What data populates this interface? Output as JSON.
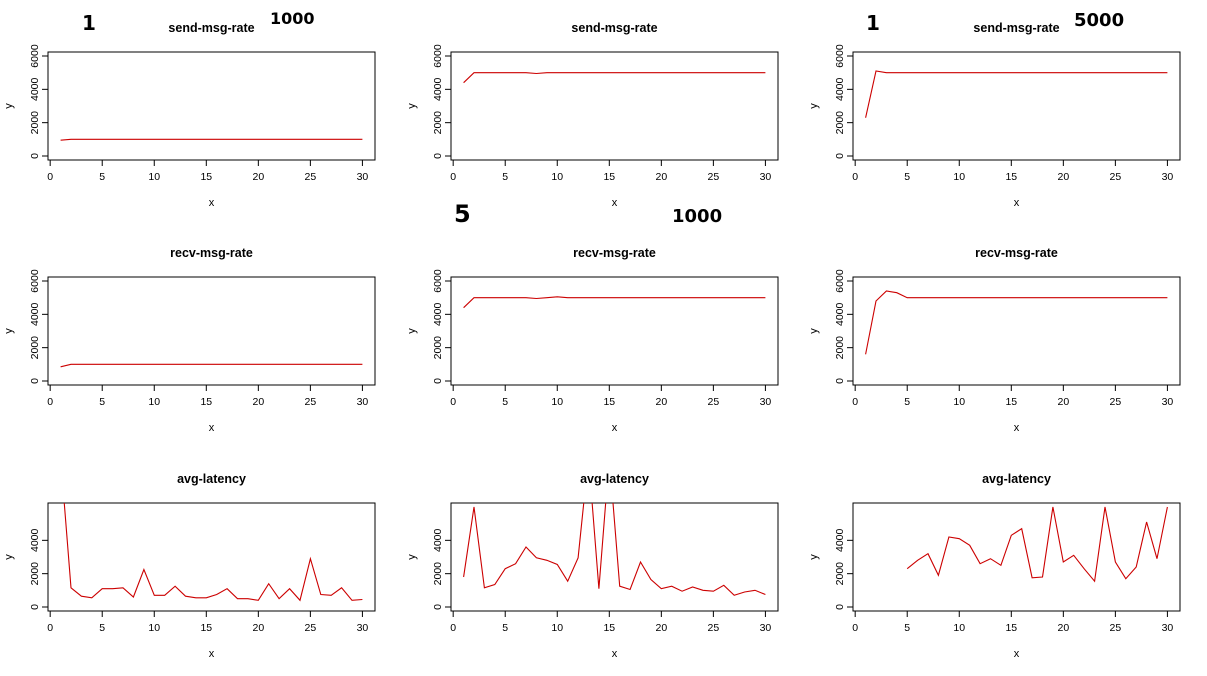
{
  "annotations": [
    {
      "id": "a1",
      "text": "1"
    },
    {
      "id": "a2",
      "text": "1000"
    },
    {
      "id": "a3",
      "text": "1"
    },
    {
      "id": "a4",
      "text": "5000"
    },
    {
      "id": "a5",
      "text": "5"
    },
    {
      "id": "a6",
      "text": "1000"
    }
  ],
  "chart_data": [
    {
      "type": "line",
      "title": "send-msg-rate",
      "xlabel": "x",
      "ylabel": "y",
      "xlim": [
        0,
        30
      ],
      "ylim": [
        0,
        6000
      ],
      "xticks": [
        "0",
        "5",
        "10",
        "15",
        "20",
        "25",
        "30"
      ],
      "yticks": [
        "0",
        "2000",
        "4000",
        "6000"
      ],
      "series": [
        {
          "color": "#cc0000",
          "x": [
            1,
            2,
            3,
            4,
            5,
            6,
            7,
            8,
            9,
            10,
            11,
            12,
            13,
            14,
            15,
            16,
            17,
            18,
            19,
            20,
            21,
            22,
            23,
            24,
            25,
            26,
            27,
            28,
            29,
            30
          ],
          "values": [
            950,
            1000,
            1000,
            1000,
            1000,
            1000,
            1000,
            1000,
            1000,
            1000,
            1000,
            1000,
            1000,
            1000,
            1000,
            1000,
            1000,
            1000,
            1000,
            1000,
            1000,
            1000,
            1000,
            1000,
            1000,
            1000,
            1000,
            1000,
            1000,
            1000
          ]
        }
      ]
    },
    {
      "type": "line",
      "title": "send-msg-rate",
      "xlabel": "x",
      "ylabel": "y",
      "xlim": [
        0,
        30
      ],
      "ylim": [
        0,
        6000
      ],
      "xticks": [
        "0",
        "5",
        "10",
        "15",
        "20",
        "25",
        "30"
      ],
      "yticks": [
        "0",
        "2000",
        "4000",
        "6000"
      ],
      "series": [
        {
          "color": "#cc0000",
          "x": [
            1,
            2,
            3,
            4,
            5,
            6,
            7,
            8,
            9,
            10,
            11,
            12,
            13,
            14,
            15,
            16,
            17,
            18,
            19,
            20,
            21,
            22,
            23,
            24,
            25,
            26,
            27,
            28,
            29,
            30
          ],
          "values": [
            4400,
            5000,
            5000,
            5000,
            5000,
            5000,
            5000,
            4950,
            5000,
            5000,
            5000,
            5000,
            5000,
            5000,
            5000,
            5000,
            5000,
            5000,
            5000,
            5000,
            5000,
            5000,
            5000,
            5000,
            5000,
            5000,
            5000,
            5000,
            5000,
            5000
          ]
        }
      ]
    },
    {
      "type": "line",
      "title": "send-msg-rate",
      "xlabel": "x",
      "ylabel": "y",
      "xlim": [
        0,
        30
      ],
      "ylim": [
        0,
        6000
      ],
      "xticks": [
        "0",
        "5",
        "10",
        "15",
        "20",
        "25",
        "30"
      ],
      "yticks": [
        "0",
        "2000",
        "4000",
        "6000"
      ],
      "series": [
        {
          "color": "#cc0000",
          "x": [
            1,
            2,
            3,
            4,
            5,
            6,
            7,
            8,
            9,
            10,
            11,
            12,
            13,
            14,
            15,
            16,
            17,
            18,
            19,
            20,
            21,
            22,
            23,
            24,
            25,
            26,
            27,
            28,
            29,
            30
          ],
          "values": [
            2300,
            5100,
            5000,
            5000,
            5000,
            5000,
            5000,
            5000,
            5000,
            5000,
            5000,
            5000,
            5000,
            5000,
            5000,
            5000,
            5000,
            5000,
            5000,
            5000,
            5000,
            5000,
            5000,
            5000,
            5000,
            5000,
            5000,
            5000,
            5000,
            5000
          ]
        }
      ]
    },
    {
      "type": "line",
      "title": "recv-msg-rate",
      "xlabel": "x",
      "ylabel": "y",
      "xlim": [
        0,
        30
      ],
      "ylim": [
        0,
        6000
      ],
      "xticks": [
        "0",
        "5",
        "10",
        "15",
        "20",
        "25",
        "30"
      ],
      "yticks": [
        "0",
        "2000",
        "4000",
        "6000"
      ],
      "series": [
        {
          "color": "#cc0000",
          "x": [
            1,
            2,
            3,
            4,
            5,
            6,
            7,
            8,
            9,
            10,
            11,
            12,
            13,
            14,
            15,
            16,
            17,
            18,
            19,
            20,
            21,
            22,
            23,
            24,
            25,
            26,
            27,
            28,
            29,
            30
          ],
          "values": [
            850,
            1000,
            1000,
            1000,
            1000,
            1000,
            1000,
            1000,
            1000,
            1000,
            1000,
            1000,
            1000,
            1000,
            1000,
            1000,
            1000,
            1000,
            1000,
            1000,
            1000,
            1000,
            1000,
            1000,
            1000,
            1000,
            1000,
            1000,
            1000,
            1000
          ]
        }
      ]
    },
    {
      "type": "line",
      "title": "recv-msg-rate",
      "xlabel": "x",
      "ylabel": "y",
      "xlim": [
        0,
        30
      ],
      "ylim": [
        0,
        6000
      ],
      "xticks": [
        "0",
        "5",
        "10",
        "15",
        "20",
        "25",
        "30"
      ],
      "yticks": [
        "0",
        "2000",
        "4000",
        "6000"
      ],
      "series": [
        {
          "color": "#cc0000",
          "x": [
            1,
            2,
            3,
            4,
            5,
            6,
            7,
            8,
            9,
            10,
            11,
            12,
            13,
            14,
            15,
            16,
            17,
            18,
            19,
            20,
            21,
            22,
            23,
            24,
            25,
            26,
            27,
            28,
            29,
            30
          ],
          "values": [
            4400,
            5000,
            5000,
            5000,
            5000,
            5000,
            5000,
            4950,
            5000,
            5050,
            5000,
            5000,
            5000,
            5000,
            5000,
            5000,
            5000,
            5000,
            5000,
            5000,
            5000,
            5000,
            5000,
            5000,
            5000,
            5000,
            5000,
            5000,
            5000,
            5000
          ]
        }
      ]
    },
    {
      "type": "line",
      "title": "recv-msg-rate",
      "xlabel": "x",
      "ylabel": "y",
      "xlim": [
        0,
        30
      ],
      "ylim": [
        0,
        6000
      ],
      "xticks": [
        "0",
        "5",
        "10",
        "15",
        "20",
        "25",
        "30"
      ],
      "yticks": [
        "0",
        "2000",
        "4000",
        "6000"
      ],
      "series": [
        {
          "color": "#cc0000",
          "x": [
            1,
            2,
            3,
            4,
            5,
            6,
            7,
            8,
            9,
            10,
            11,
            12,
            13,
            14,
            15,
            16,
            17,
            18,
            19,
            20,
            21,
            22,
            23,
            24,
            25,
            26,
            27,
            28,
            29,
            30
          ],
          "values": [
            1600,
            4800,
            5400,
            5300,
            5000,
            5000,
            5000,
            5000,
            5000,
            5000,
            5000,
            5000,
            5000,
            5000,
            5000,
            5000,
            5000,
            5000,
            5000,
            5000,
            5000,
            5000,
            5000,
            5000,
            5000,
            5000,
            5000,
            5000,
            5000,
            5000
          ]
        }
      ]
    },
    {
      "type": "line",
      "title": "avg-latency",
      "xlabel": "x",
      "ylabel": "y",
      "xlim": [
        0,
        30
      ],
      "ylim": [
        0,
        5000
      ],
      "xticks": [
        "0",
        "5",
        "10",
        "15",
        "20",
        "25",
        "30"
      ],
      "yticks": [
        "0",
        "2000",
        "4000"
      ],
      "series": [
        {
          "color": "#cc0000",
          "x": [
            1,
            2,
            3,
            4,
            5,
            6,
            7,
            8,
            9,
            10,
            11,
            12,
            13,
            14,
            15,
            16,
            17,
            18,
            19,
            20,
            21,
            22,
            23,
            24,
            25,
            26,
            27,
            28,
            29,
            30
          ],
          "values": [
            9000,
            1150,
            650,
            550,
            1100,
            1100,
            1150,
            600,
            2250,
            700,
            700,
            1250,
            650,
            550,
            550,
            750,
            1100,
            500,
            500,
            400,
            1400,
            500,
            1100,
            400,
            2900,
            750,
            700,
            1150,
            400,
            450
          ]
        }
      ]
    },
    {
      "type": "line",
      "title": "avg-latency",
      "xlabel": "x",
      "ylabel": "y",
      "xlim": [
        0,
        30
      ],
      "ylim": [
        0,
        5000
      ],
      "xticks": [
        "0",
        "5",
        "10",
        "15",
        "20",
        "25",
        "30"
      ],
      "yticks": [
        "0",
        "2000",
        "4000"
      ],
      "series": [
        {
          "color": "#cc0000",
          "x": [
            1,
            2,
            3,
            4,
            5,
            6,
            7,
            8,
            9,
            10,
            11,
            12,
            13,
            14,
            15,
            16,
            17,
            18,
            19,
            20,
            21,
            22,
            23,
            24,
            25,
            26,
            27,
            28,
            29,
            30
          ],
          "values": [
            1800,
            6000,
            1150,
            1350,
            2300,
            2600,
            3600,
            2950,
            2800,
            2550,
            1550,
            2950,
            9000,
            1100,
            9000,
            1250,
            1050,
            2700,
            1650,
            1100,
            1250,
            950,
            1200,
            1000,
            950,
            1300,
            700,
            900,
            1000,
            750
          ]
        }
      ]
    },
    {
      "type": "line",
      "title": "avg-latency",
      "xlabel": "x",
      "ylabel": "y",
      "xlim": [
        0,
        30
      ],
      "ylim": [
        0,
        5000
      ],
      "xticks": [
        "0",
        "5",
        "10",
        "15",
        "20",
        "25",
        "30"
      ],
      "yticks": [
        "0",
        "2000",
        "4000"
      ],
      "series": [
        {
          "color": "#cc0000",
          "x": [
            5,
            6,
            7,
            8,
            9,
            10,
            11,
            12,
            13,
            14,
            15,
            16,
            17,
            18,
            19,
            20,
            21,
            22,
            23,
            24,
            25,
            26,
            27,
            28,
            29,
            30
          ],
          "values": [
            2300,
            2800,
            3200,
            1900,
            4200,
            4100,
            3700,
            2600,
            2900,
            2500,
            4300,
            4700,
            1750,
            1800,
            6000,
            2700,
            3100,
            2300,
            1550,
            6000,
            2700,
            1700,
            2400,
            5100,
            2900,
            6000
          ]
        }
      ]
    }
  ]
}
